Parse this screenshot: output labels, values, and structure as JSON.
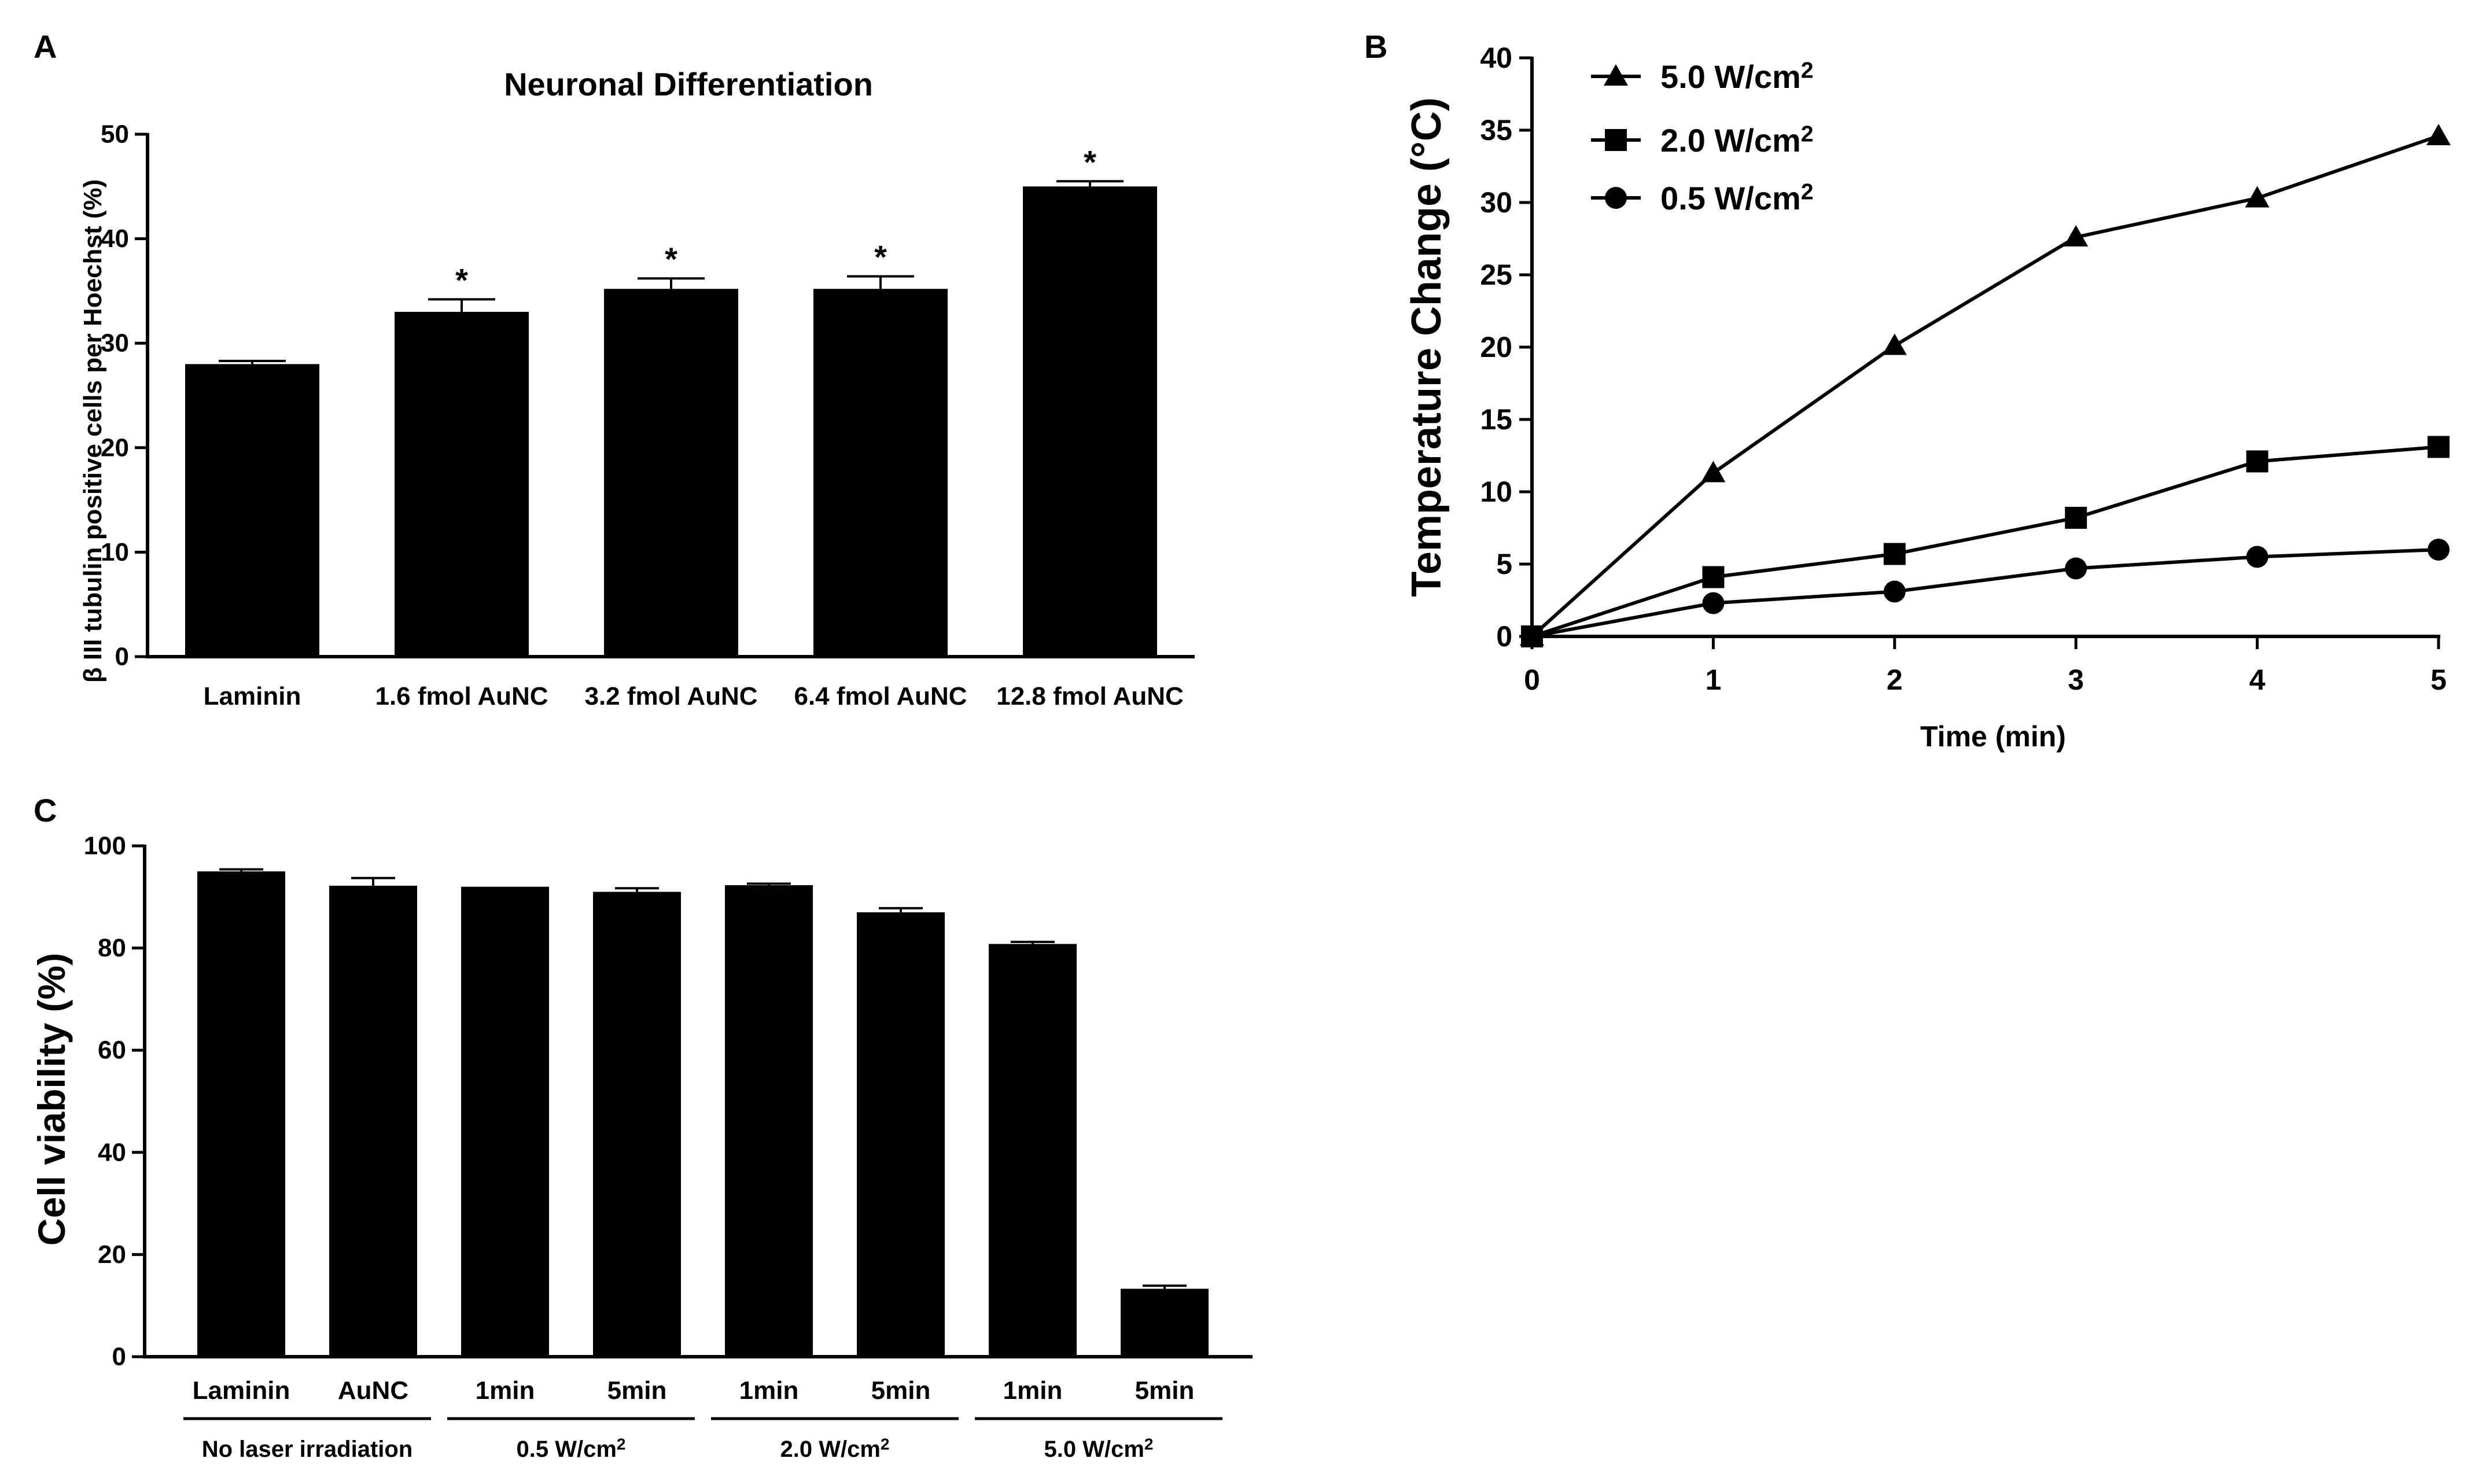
{
  "chart_data": [
    {
      "panel": "A",
      "type": "bar",
      "title": "Neuronal Differentiation",
      "ylabel": "β III tubulin positive cells per Hoechst (%)",
      "xlabel": "",
      "ylim": [
        0,
        50
      ],
      "yticks": [
        "0",
        "10",
        "20",
        "30",
        "40",
        "50"
      ],
      "categories": [
        "Laminin",
        "1.6 fmol AuNC",
        "3.2 fmol AuNC",
        "6.4 fmol AuNC",
        "12.8 fmol AuNC"
      ],
      "values": [
        28.0,
        33.0,
        35.2,
        35.2,
        45.0
      ],
      "errors": [
        0.3,
        1.2,
        1.0,
        1.2,
        0.5
      ],
      "annotations": [
        "",
        "*",
        "*",
        "*",
        "*"
      ],
      "bar_color": "#000000"
    },
    {
      "panel": "B",
      "type": "line",
      "xlabel": "Time (min)",
      "ylabel": "Temperature Change (°C)",
      "xlim": [
        0,
        5
      ],
      "ylim": [
        0,
        40
      ],
      "xticks": [
        "0",
        "1",
        "2",
        "3",
        "4",
        "5"
      ],
      "yticks": [
        "0",
        "5",
        "10",
        "15",
        "20",
        "25",
        "30",
        "35",
        "40"
      ],
      "x": [
        0,
        1,
        2,
        3,
        4,
        5
      ],
      "legend_position": "top-left",
      "series": [
        {
          "name": "5.0 W/cm",
          "sup": "2",
          "marker": "triangle",
          "values": [
            0,
            11.3,
            20.1,
            27.6,
            30.3,
            34.6
          ]
        },
        {
          "name": "2.0 W/cm",
          "sup": "2",
          "marker": "square",
          "values": [
            0,
            4.1,
            5.7,
            8.2,
            12.1,
            13.1
          ]
        },
        {
          "name": "0.5 W/cm",
          "sup": "2",
          "marker": "circle",
          "values": [
            0,
            2.3,
            3.1,
            4.7,
            5.5,
            6.0
          ]
        }
      ]
    },
    {
      "panel": "C",
      "type": "bar",
      "ylabel": "Cell viability (%)",
      "xlabel": "",
      "ylim": [
        0,
        100
      ],
      "yticks": [
        "0",
        "20",
        "40",
        "60",
        "80",
        "100"
      ],
      "categories": [
        "Laminin",
        "AuNC",
        "1min",
        "5min",
        "1min",
        "5min",
        "1min",
        "5min"
      ],
      "values": [
        95.0,
        92.2,
        92.0,
        91.0,
        92.3,
        87.0,
        80.8,
        13.3
      ],
      "errors": [
        0.4,
        1.5,
        0.0,
        0.7,
        0.3,
        0.8,
        0.4,
        0.6
      ],
      "groups": [
        {
          "label": "No laser irradiation",
          "sup": "",
          "start": 0,
          "end": 1
        },
        {
          "label": "0.5 W/cm",
          "sup": "2",
          "start": 2,
          "end": 3
        },
        {
          "label": "2.0 W/cm",
          "sup": "2",
          "start": 4,
          "end": 5
        },
        {
          "label": "5.0 W/cm",
          "sup": "2",
          "start": 6,
          "end": 7
        }
      ],
      "bar_color": "#000000"
    }
  ]
}
